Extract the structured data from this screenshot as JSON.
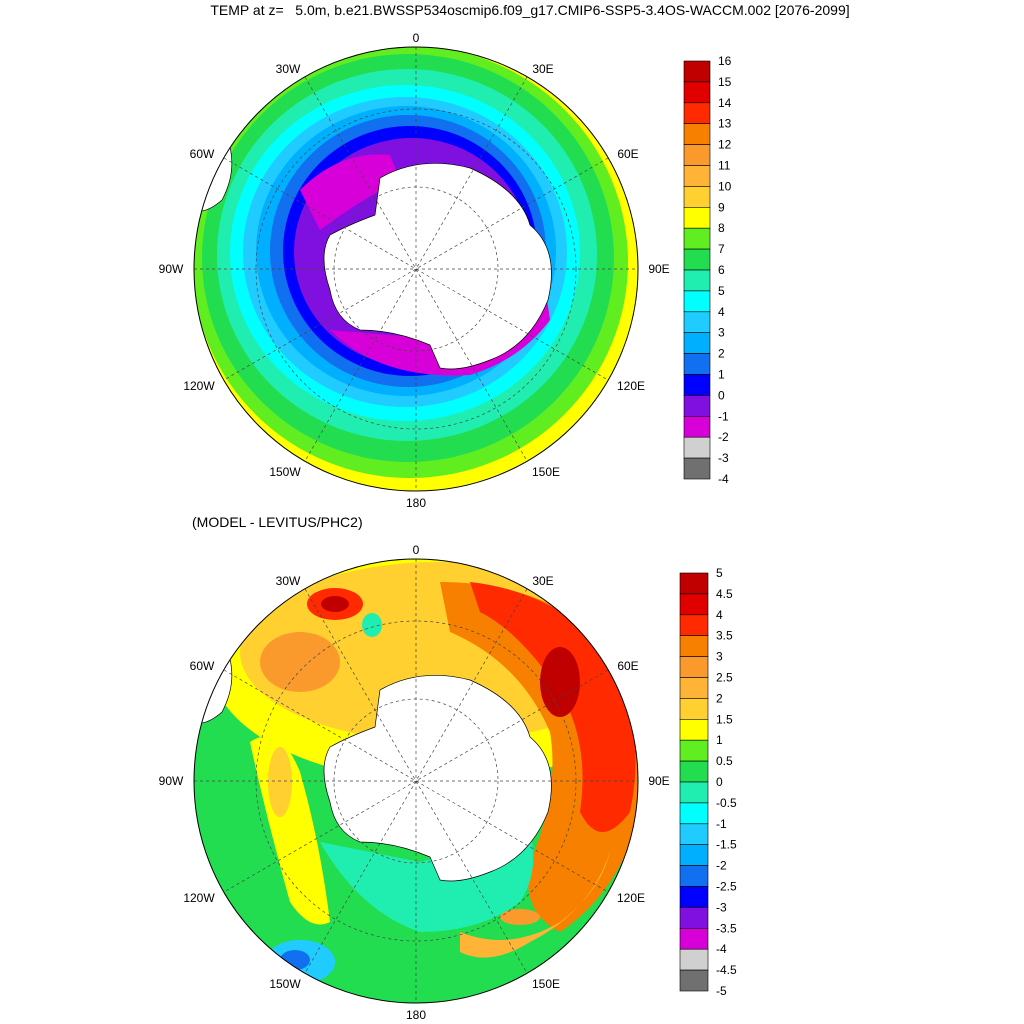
{
  "top_panel": {
    "title": "TEMP at z=   5.0m, b.e21.BWSSP534oscmip6.f09_g17.CMIP6-SSP5-3.4OS-WACCM.002 [2076-2099]",
    "lon_labels": {
      "top": "0",
      "top_left": "30W",
      "top_right": "30E",
      "upper_left": "60W",
      "upper_right": "60E",
      "left": "90W",
      "right": "90E",
      "lower_left": "120W",
      "lower_right": "120E",
      "bottom_left": "150W",
      "bottom_right": "150E",
      "bottom": "180"
    },
    "colorbar": {
      "labels": [
        "16",
        "15",
        "14",
        "13",
        "12",
        "11",
        "10",
        "9",
        "8",
        "7",
        "6",
        "5",
        "4",
        "3",
        "2",
        "1",
        "0",
        "-1",
        "-2",
        "-3",
        "-4"
      ],
      "colors": [
        "#c00000",
        "#e00000",
        "#ff2a00",
        "#f78000",
        "#fb9a2c",
        "#ffb438",
        "#ffd030",
        "#ffff00",
        "#60ee20",
        "#22dd50",
        "#20eeb0",
        "#00ffff",
        "#20ccff",
        "#00b0ff",
        "#1070f0",
        "#0000ff",
        "#8010e0",
        "#d800d8",
        "#d0d0d0",
        "#707070"
      ]
    }
  },
  "bottom_panel": {
    "title": "(MODEL - LEVITUS/PHC2)",
    "lon_labels": {
      "top": "0",
      "top_left": "30W",
      "top_right": "30E",
      "upper_left": "60W",
      "upper_right": "60E",
      "left": "90W",
      "right": "90E",
      "lower_left": "120W",
      "lower_right": "120E",
      "bottom_left": "150W",
      "bottom_right": "150E",
      "bottom": "180"
    },
    "colorbar": {
      "labels": [
        "5",
        "4.5",
        "4",
        "3.5",
        "3",
        "2.5",
        "2",
        "1.5",
        "1",
        "0.5",
        "0",
        "-0.5",
        "-1",
        "-1.5",
        "-2",
        "-2.5",
        "-3",
        "-3.5",
        "-4",
        "-4.5",
        "-5"
      ],
      "colors": [
        "#c00000",
        "#e00000",
        "#ff2a00",
        "#f78000",
        "#fb9a2c",
        "#ffb438",
        "#ffd030",
        "#ffff00",
        "#60ee20",
        "#22dd50",
        "#20eeb0",
        "#00ffff",
        "#20ccff",
        "#00b0ff",
        "#1070f0",
        "#0000ff",
        "#8010e0",
        "#d800d8",
        "#d0d0d0",
        "#707070"
      ]
    }
  }
}
